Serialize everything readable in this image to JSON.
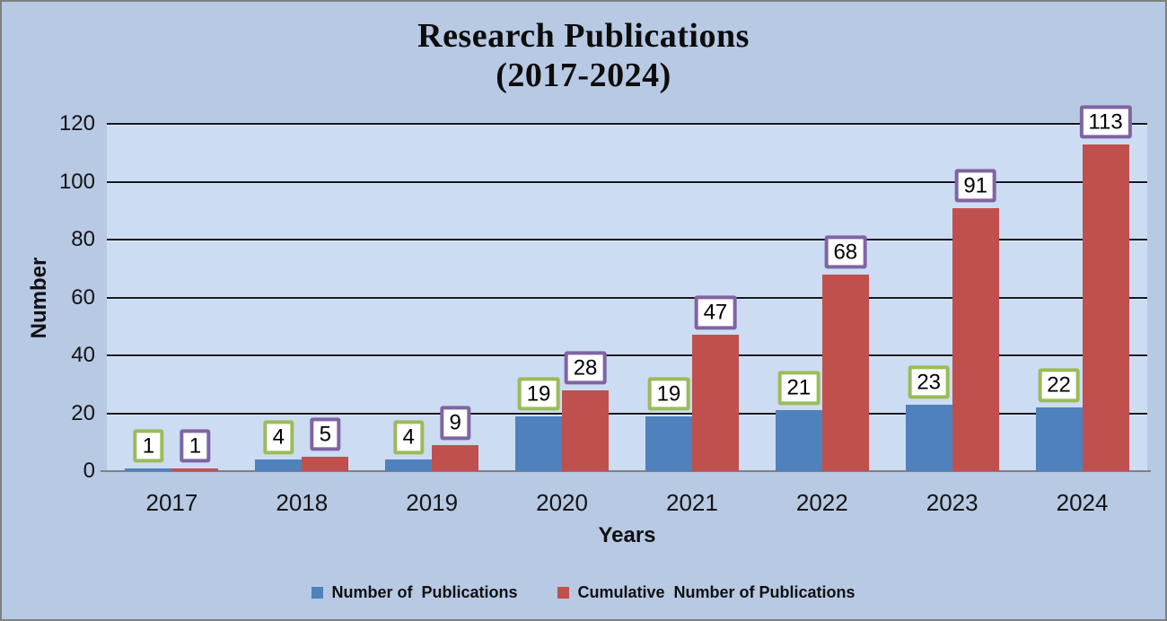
{
  "title": {
    "line1": "Research Publications",
    "line2": "(2017-2024)"
  },
  "colors": {
    "outer_background": "#b7c9e3",
    "plot_background": "#ccdcf2",
    "gridline": "#16181c",
    "axis_line": "#808080",
    "frame_border": "#808080",
    "label_box_background": "#ffffff"
  },
  "chart_data": {
    "type": "bar",
    "title": "Research Publications (2017-2024)",
    "xlabel": "Years",
    "ylabel": "Number",
    "categories": [
      "2017",
      "2018",
      "2019",
      "2020",
      "2021",
      "2022",
      "2023",
      "2024"
    ],
    "series": [
      {
        "key": "publications",
        "name": "Number of  Publications",
        "color": "#4f81bd",
        "label_border": "#9bbb59",
        "values": [
          1,
          4,
          4,
          19,
          19,
          21,
          23,
          22
        ]
      },
      {
        "key": "cumulative",
        "name": "Cumulative  Number of Publications",
        "color": "#c0504d",
        "label_border": "#8064a2",
        "values": [
          1,
          5,
          9,
          28,
          47,
          68,
          91,
          113
        ]
      }
    ],
    "ylim": [
      0,
      120
    ],
    "yticks": [
      0,
      20,
      40,
      60,
      80,
      100,
      120
    ],
    "ytick_step": 20,
    "grid": true,
    "data_labels": true,
    "legend_position": "bottom"
  }
}
